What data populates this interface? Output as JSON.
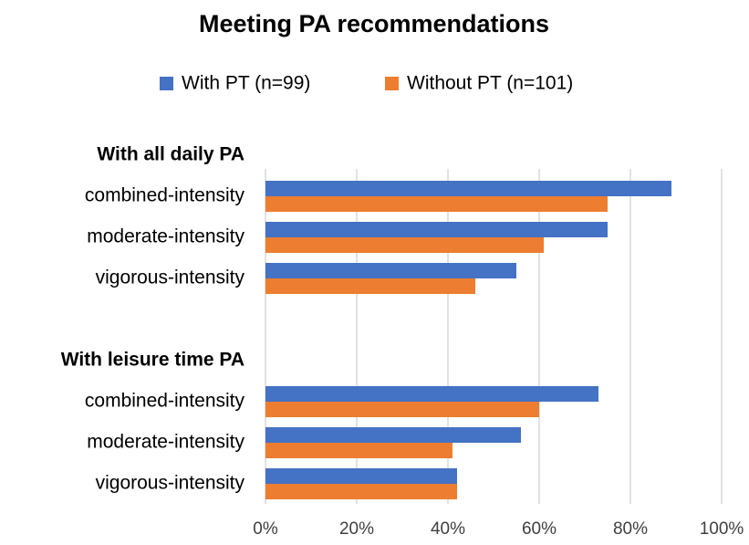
{
  "chart_data": {
    "type": "hbar",
    "title": "Meeting PA recommendations",
    "categories": [
      "With all daily PA",
      "combined-intensity",
      "moderate-intensity",
      "vigorous-intensity",
      null,
      "With leisure time PA",
      "combined-intensity",
      "moderate-intensity",
      "vigorous-intensity"
    ],
    "series": [
      {
        "name": "With PT (n=99)",
        "color": "#4472c4",
        "values": [
          null,
          89,
          75,
          55,
          null,
          null,
          73,
          56,
          42
        ]
      },
      {
        "name": "Without PT (n=101)",
        "color": "#ed7d31",
        "values": [
          null,
          75,
          61,
          46,
          null,
          null,
          60,
          41,
          42
        ]
      }
    ],
    "xlim": [
      0,
      100
    ],
    "xticks": [
      {
        "value": 0,
        "label": "0%"
      },
      {
        "value": 20,
        "label": "20%"
      },
      {
        "value": 40,
        "label": "40%"
      },
      {
        "value": 60,
        "label": "60%"
      },
      {
        "value": 80,
        "label": "80%"
      },
      {
        "value": 100,
        "label": "100%"
      }
    ],
    "grid": true,
    "legend": "top"
  }
}
